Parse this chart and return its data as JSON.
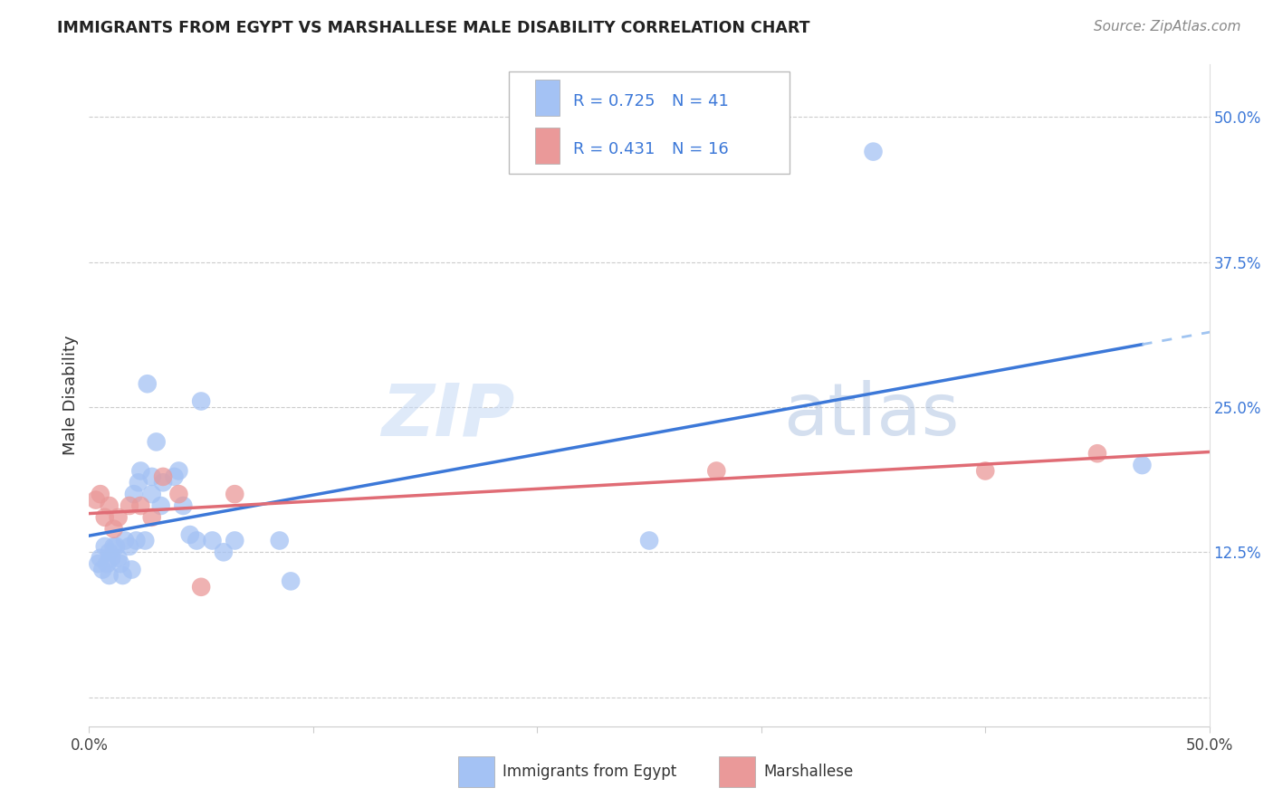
{
  "title": "IMMIGRANTS FROM EGYPT VS MARSHALLESE MALE DISABILITY CORRELATION CHART",
  "source": "Source: ZipAtlas.com",
  "ylabel": "Male Disability",
  "right_yticks": [
    0.0,
    0.125,
    0.25,
    0.375,
    0.5
  ],
  "right_yticklabels": [
    "",
    "12.5%",
    "25.0%",
    "37.5%",
    "50.0%"
  ],
  "xlim": [
    0.0,
    0.5
  ],
  "ylim": [
    -0.025,
    0.545
  ],
  "legend_r1": "0.725",
  "legend_n1": "41",
  "legend_r2": "0.431",
  "legend_n2": "16",
  "blue_color": "#a4c2f4",
  "pink_color": "#ea9999",
  "blue_line_color": "#3c78d8",
  "pink_line_color": "#e06c75",
  "watermark_zip": "ZIP",
  "watermark_atlas": "atlas",
  "egypt_x": [
    0.004,
    0.005,
    0.006,
    0.007,
    0.008,
    0.009,
    0.009,
    0.01,
    0.011,
    0.012,
    0.013,
    0.014,
    0.015,
    0.016,
    0.018,
    0.019,
    0.02,
    0.021,
    0.022,
    0.023,
    0.025,
    0.026,
    0.028,
    0.028,
    0.03,
    0.032,
    0.033,
    0.038,
    0.04,
    0.042,
    0.045,
    0.048,
    0.05,
    0.055,
    0.06,
    0.065,
    0.085,
    0.09,
    0.25,
    0.35,
    0.47
  ],
  "egypt_y": [
    0.115,
    0.12,
    0.11,
    0.13,
    0.115,
    0.125,
    0.105,
    0.12,
    0.13,
    0.13,
    0.12,
    0.115,
    0.105,
    0.135,
    0.13,
    0.11,
    0.175,
    0.135,
    0.185,
    0.195,
    0.135,
    0.27,
    0.175,
    0.19,
    0.22,
    0.165,
    0.185,
    0.19,
    0.195,
    0.165,
    0.14,
    0.135,
    0.255,
    0.135,
    0.125,
    0.135,
    0.135,
    0.1,
    0.135,
    0.47,
    0.2
  ],
  "marsh_x": [
    0.003,
    0.005,
    0.007,
    0.009,
    0.011,
    0.013,
    0.018,
    0.023,
    0.028,
    0.033,
    0.04,
    0.05,
    0.065,
    0.28,
    0.4,
    0.45
  ],
  "marsh_y": [
    0.17,
    0.175,
    0.155,
    0.165,
    0.145,
    0.155,
    0.165,
    0.165,
    0.155,
    0.19,
    0.175,
    0.095,
    0.175,
    0.195,
    0.195,
    0.21
  ]
}
